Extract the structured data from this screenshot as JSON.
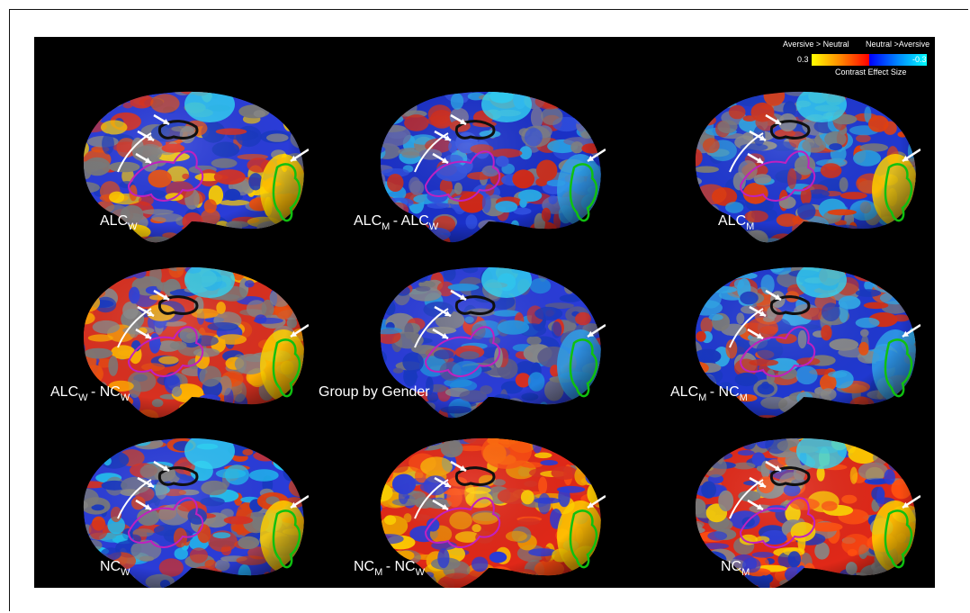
{
  "legend": {
    "left_title": "Aversive > Neutral",
    "right_title": "Neutral >Aversive",
    "left_value": "0.3",
    "right_value": "-0.3",
    "caption": "Contrast Effect Size",
    "warm_colors": [
      "#ffff00",
      "#ff8800",
      "#ff0000"
    ],
    "cool_colors": [
      "#0000ff",
      "#0088ff",
      "#00ffff"
    ]
  },
  "panels": [
    {
      "main": "ALC",
      "sub": "W"
    },
    {
      "main": "ALC",
      "sub": "M",
      "main2": "ALC",
      "sub2": "W"
    },
    {
      "main": "ALC",
      "sub": "M"
    },
    {
      "main": "ALC",
      "sub": "W",
      "main2": "NC",
      "sub2": "W"
    },
    {
      "text": "Group by Gender"
    },
    {
      "main": "ALC",
      "sub": "M",
      "main2": "NC",
      "sub2": "M"
    },
    {
      "main": "NC",
      "sub": "W"
    },
    {
      "main": "NC",
      "sub": "M",
      "main2": "NC",
      "sub2": "W"
    },
    {
      "main": "NC",
      "sub": "M"
    }
  ]
}
